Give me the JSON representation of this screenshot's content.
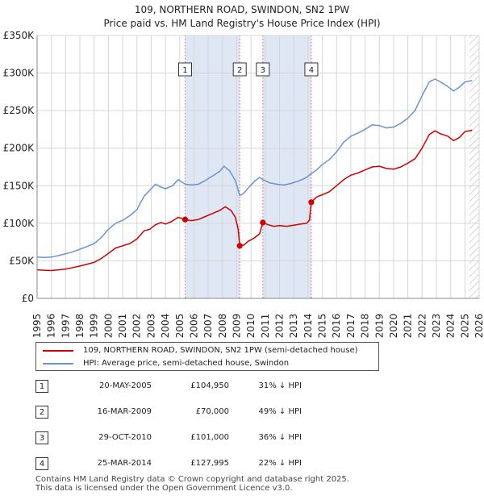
{
  "chart_data": {
    "type": "line",
    "title": "109, NORTHERN ROAD, SWINDON, SN2 1PW",
    "subtitle": "Price paid vs. HM Land Registry's House Price Index (HPI)",
    "xlim": [
      1995,
      2026
    ],
    "ylim": [
      0,
      350000
    ],
    "x_ticks": [
      "1995",
      "1996",
      "1997",
      "1998",
      "1999",
      "2000",
      "2001",
      "2002",
      "2003",
      "2004",
      "2005",
      "2006",
      "2007",
      "2008",
      "2009",
      "2010",
      "2011",
      "2012",
      "2013",
      "2014",
      "2015",
      "2016",
      "2017",
      "2018",
      "2019",
      "2020",
      "2021",
      "2022",
      "2023",
      "2024",
      "2025",
      "2026"
    ],
    "y_ticks": [
      {
        "value": 0,
        "label": "£0"
      },
      {
        "value": 50000,
        "label": "£50K"
      },
      {
        "value": 100000,
        "label": "£100K"
      },
      {
        "value": 150000,
        "label": "£150K"
      },
      {
        "value": 200000,
        "label": "£200K"
      },
      {
        "value": 250000,
        "label": "£250K"
      },
      {
        "value": 300000,
        "label": "£300K"
      },
      {
        "value": 350000,
        "label": "£350K"
      }
    ],
    "grid": true,
    "shaded_ranges": [
      [
        2005.38,
        2009.21
      ],
      [
        2010.83,
        2014.23
      ]
    ],
    "hatched_from": 2025.3,
    "colors": {
      "price": "#cc0000",
      "hpi": "#6a93cd",
      "shade": "#dfe7f5",
      "grid": "#d6d6d6",
      "marker_line": "#e06070"
    },
    "series": [
      {
        "name": "109, NORTHERN ROAD, SWINDON, SN2 1PW (semi-detached house)",
        "key": "price",
        "points": [
          [
            1995.0,
            38000
          ],
          [
            1995.5,
            37500
          ],
          [
            1996.0,
            37000
          ],
          [
            1996.5,
            38000
          ],
          [
            1997.0,
            39000
          ],
          [
            1997.5,
            41000
          ],
          [
            1998.0,
            43000
          ],
          [
            1998.5,
            45500
          ],
          [
            1999.0,
            48000
          ],
          [
            1999.5,
            53000
          ],
          [
            2000.0,
            60000
          ],
          [
            2000.5,
            67000
          ],
          [
            2001.0,
            70000
          ],
          [
            2001.5,
            73000
          ],
          [
            2002.0,
            79000
          ],
          [
            2002.5,
            90000
          ],
          [
            2002.9,
            92000
          ],
          [
            2003.3,
            98000
          ],
          [
            2003.7,
            101000
          ],
          [
            2004.0,
            99000
          ],
          [
            2004.4,
            102000
          ],
          [
            2004.9,
            108000
          ],
          [
            2005.38,
            104950
          ],
          [
            2005.8,
            103500
          ],
          [
            2006.3,
            105000
          ],
          [
            2006.8,
            109000
          ],
          [
            2007.3,
            113000
          ],
          [
            2007.8,
            117000
          ],
          [
            2008.2,
            122000
          ],
          [
            2008.6,
            117000
          ],
          [
            2008.9,
            108000
          ],
          [
            2009.1,
            92000
          ],
          [
            2009.21,
            70000
          ],
          [
            2009.5,
            71000
          ],
          [
            2009.8,
            76000
          ],
          [
            2010.2,
            80000
          ],
          [
            2010.6,
            86000
          ],
          [
            2010.83,
            101000
          ],
          [
            2011.2,
            98000
          ],
          [
            2011.6,
            96000
          ],
          [
            2012.0,
            97000
          ],
          [
            2012.5,
            96000
          ],
          [
            2013.0,
            97500
          ],
          [
            2013.5,
            99000
          ],
          [
            2013.9,
            100000
          ],
          [
            2014.1,
            104000
          ],
          [
            2014.23,
            127995
          ],
          [
            2014.6,
            135000
          ],
          [
            2015.0,
            138000
          ],
          [
            2015.5,
            142000
          ],
          [
            2016.0,
            150000
          ],
          [
            2016.5,
            158000
          ],
          [
            2017.0,
            164000
          ],
          [
            2017.5,
            167000
          ],
          [
            2018.0,
            171000
          ],
          [
            2018.5,
            175000
          ],
          [
            2019.0,
            176000
          ],
          [
            2019.5,
            173000
          ],
          [
            2020.0,
            172000
          ],
          [
            2020.5,
            175000
          ],
          [
            2021.0,
            180000
          ],
          [
            2021.5,
            186000
          ],
          [
            2022.0,
            200000
          ],
          [
            2022.5,
            218000
          ],
          [
            2022.9,
            223000
          ],
          [
            2023.3,
            219000
          ],
          [
            2023.8,
            216000
          ],
          [
            2024.2,
            210000
          ],
          [
            2024.6,
            214000
          ],
          [
            2025.0,
            222000
          ],
          [
            2025.5,
            224000
          ]
        ]
      },
      {
        "name": "HPI: Average price, semi-detached house, Swindon",
        "key": "hpi",
        "points": [
          [
            1995.0,
            55000
          ],
          [
            1995.5,
            54500
          ],
          [
            1996.0,
            55000
          ],
          [
            1996.5,
            57000
          ],
          [
            1997.0,
            59500
          ],
          [
            1997.5,
            62000
          ],
          [
            1998.0,
            65500
          ],
          [
            1998.5,
            69000
          ],
          [
            1999.0,
            73000
          ],
          [
            1999.5,
            81000
          ],
          [
            2000.0,
            92000
          ],
          [
            2000.5,
            100000
          ],
          [
            2001.0,
            104000
          ],
          [
            2001.5,
            110000
          ],
          [
            2002.0,
            118000
          ],
          [
            2002.5,
            136000
          ],
          [
            2002.9,
            144000
          ],
          [
            2003.3,
            152000
          ],
          [
            2003.7,
            148000
          ],
          [
            2004.0,
            146000
          ],
          [
            2004.5,
            150000
          ],
          [
            2004.9,
            158000
          ],
          [
            2005.38,
            152000
          ],
          [
            2005.8,
            151000
          ],
          [
            2006.3,
            152000
          ],
          [
            2006.8,
            157000
          ],
          [
            2007.3,
            163000
          ],
          [
            2007.8,
            169000
          ],
          [
            2008.1,
            176000
          ],
          [
            2008.5,
            170000
          ],
          [
            2008.9,
            157000
          ],
          [
            2009.21,
            137000
          ],
          [
            2009.5,
            140000
          ],
          [
            2009.9,
            149000
          ],
          [
            2010.3,
            157000
          ],
          [
            2010.6,
            161000
          ],
          [
            2010.83,
            158000
          ],
          [
            2011.3,
            154000
          ],
          [
            2011.8,
            152000
          ],
          [
            2012.3,
            151000
          ],
          [
            2012.8,
            153000
          ],
          [
            2013.3,
            156000
          ],
          [
            2013.8,
            160000
          ],
          [
            2014.23,
            166000
          ],
          [
            2014.6,
            171000
          ],
          [
            2015.0,
            178000
          ],
          [
            2015.5,
            185000
          ],
          [
            2016.0,
            195000
          ],
          [
            2016.5,
            208000
          ],
          [
            2017.0,
            216000
          ],
          [
            2017.5,
            220000
          ],
          [
            2018.0,
            225000
          ],
          [
            2018.5,
            231000
          ],
          [
            2019.0,
            230000
          ],
          [
            2019.5,
            227000
          ],
          [
            2020.0,
            228000
          ],
          [
            2020.5,
            233000
          ],
          [
            2021.0,
            240000
          ],
          [
            2021.5,
            250000
          ],
          [
            2022.0,
            270000
          ],
          [
            2022.5,
            288000
          ],
          [
            2022.9,
            292000
          ],
          [
            2023.3,
            288000
          ],
          [
            2023.8,
            282000
          ],
          [
            2024.2,
            276000
          ],
          [
            2024.6,
            281000
          ],
          [
            2025.0,
            288000
          ],
          [
            2025.5,
            290000
          ]
        ]
      }
    ],
    "sales": [
      {
        "num": "1",
        "x": 2005.38,
        "price": 104950
      },
      {
        "num": "2",
        "x": 2009.21,
        "price": 70000
      },
      {
        "num": "3",
        "x": 2010.83,
        "price": 101000
      },
      {
        "num": "4",
        "x": 2014.23,
        "price": 127995
      }
    ],
    "legend": {
      "price_label": "109, NORTHERN ROAD, SWINDON, SN2 1PW (semi-detached house)",
      "hpi_label": "HPI: Average price, semi-detached house, Swindon"
    }
  },
  "table": [
    {
      "num": "1",
      "date": "20-MAY-2005",
      "price": "£104,950",
      "hpi": "31% ↓ HPI"
    },
    {
      "num": "2",
      "date": "16-MAR-2009",
      "price": "£70,000",
      "hpi": "49% ↓ HPI"
    },
    {
      "num": "3",
      "date": "29-OCT-2010",
      "price": "£101,000",
      "hpi": "36% ↓ HPI"
    },
    {
      "num": "4",
      "date": "25-MAR-2014",
      "price": "£127,995",
      "hpi": "22% ↓ HPI"
    }
  ],
  "footer": {
    "line1": "Contains HM Land Registry data © Crown copyright and database right 2025.",
    "line2": "This data is licensed under the Open Government Licence v3.0."
  }
}
